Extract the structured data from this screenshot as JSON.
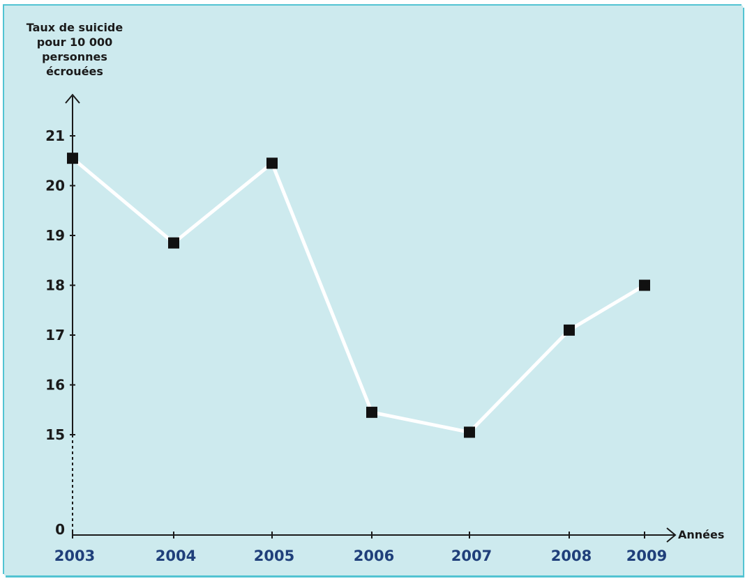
{
  "colors": {
    "background": "#cdeaee",
    "frame": "#52c3d2",
    "line": "#ffffff",
    "marker": "#111111",
    "axis": "#1a1a1a",
    "year_label": "#1f3f7a"
  },
  "chart_data": {
    "type": "line",
    "ylabel_lines": [
      "Taux de suicide",
      "pour 10 000",
      "personnes",
      "écrouées"
    ],
    "xlabel": "Années",
    "x": [
      "2003",
      "2004",
      "2005",
      "2006",
      "2007",
      "2008",
      "2009"
    ],
    "series": [
      {
        "values": [
          20.55,
          18.85,
          20.45,
          15.45,
          15.05,
          17.1,
          18.0
        ]
      }
    ],
    "y_ticks": [
      15,
      16,
      17,
      18,
      19,
      20,
      21
    ],
    "y_origin_label": "0",
    "y_axis_break": "dashed segment between 0 and 15",
    "ylim": [
      15,
      21
    ],
    "grid": false,
    "legend": "none",
    "marker": "square"
  }
}
